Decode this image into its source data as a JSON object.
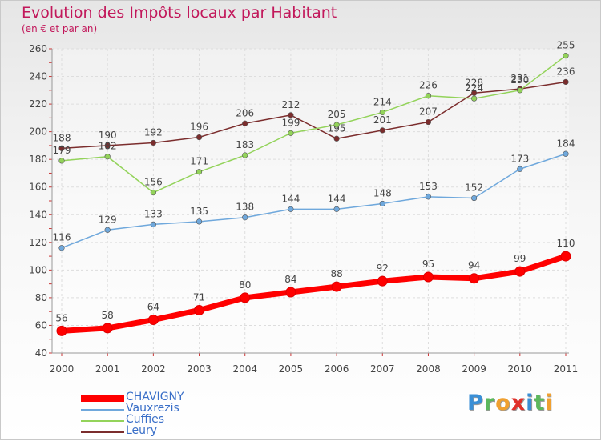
{
  "title": "Evolution des Impôts locaux par Habitant",
  "subtitle": "(en € et par an)",
  "logo": {
    "text": "Proxiti",
    "letters": [
      {
        "ch": "P",
        "color": "#3a8fd6"
      },
      {
        "ch": "r",
        "color": "#5cb85c"
      },
      {
        "ch": "o",
        "color": "#f0a030"
      },
      {
        "ch": "x",
        "color": "#e0302a"
      },
      {
        "ch": "i",
        "color": "#3a8fd6"
      },
      {
        "ch": "t",
        "color": "#5cb85c"
      },
      {
        "ch": "i",
        "color": "#f0a030"
      }
    ]
  },
  "chart_data": {
    "type": "line",
    "title": "Evolution des Impôts locaux par Habitant",
    "subtitle": "(en € et par an)",
    "xlabel": "",
    "ylabel": "",
    "x": [
      "2000",
      "2001",
      "2002",
      "2003",
      "2004",
      "2005",
      "2006",
      "2007",
      "2008",
      "2009",
      "2010",
      "2011"
    ],
    "ylim": [
      40,
      260
    ],
    "yticks": [
      "40",
      "60",
      "80",
      "100",
      "120",
      "140",
      "160",
      "180",
      "200",
      "220",
      "240",
      "260"
    ],
    "grid": true,
    "legend_position": "bottom-left",
    "series": [
      {
        "name": "CHAVIGNY",
        "color": "#ff0000",
        "values": [
          56,
          58,
          64,
          71,
          80,
          84,
          88,
          92,
          95,
          94,
          99,
          110
        ],
        "labels": [
          "56",
          "58",
          "64",
          "71",
          "80",
          "84",
          "88",
          "92",
          "95",
          "94",
          "99",
          "110"
        ]
      },
      {
        "name": "Vauxrezis",
        "color": "#6fa8dc",
        "values": [
          116,
          129,
          133,
          135,
          138,
          144,
          144,
          148,
          153,
          152,
          173,
          184
        ],
        "labels": [
          "116",
          "129",
          "133",
          "135",
          "138",
          "144",
          "144",
          "148",
          "153",
          "152",
          "173",
          "184"
        ]
      },
      {
        "name": "Cuffies",
        "color": "#93d35a",
        "values": [
          179,
          182,
          156,
          171,
          183,
          199,
          205,
          214,
          226,
          224,
          230,
          255
        ],
        "labels": [
          "179",
          "182",
          "156",
          "171",
          "183",
          "199",
          "205",
          "214",
          "226",
          "224",
          "230",
          "255"
        ]
      },
      {
        "name": "Leury",
        "color": "#7b2d2d",
        "values": [
          188,
          190,
          192,
          196,
          206,
          212,
          195,
          201,
          207,
          228,
          231,
          236
        ],
        "labels": [
          "188",
          "190",
          "192",
          "196",
          "206",
          "212",
          "195",
          "201",
          "207",
          "228",
          "231",
          "236"
        ]
      }
    ]
  }
}
